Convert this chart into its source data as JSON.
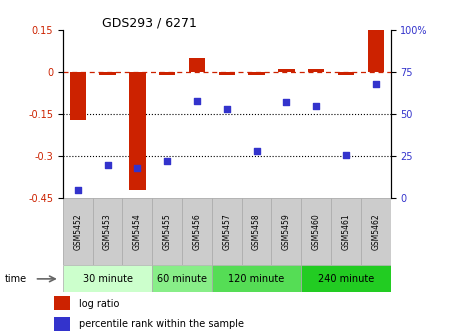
{
  "title": "GDS293 / 6271",
  "samples": [
    "GSM5452",
    "GSM5453",
    "GSM5454",
    "GSM5455",
    "GSM5456",
    "GSM5457",
    "GSM5458",
    "GSM5459",
    "GSM5460",
    "GSM5461",
    "GSM5462"
  ],
  "log_ratio": [
    -0.17,
    -0.01,
    -0.42,
    -0.01,
    0.05,
    -0.01,
    -0.01,
    0.01,
    0.01,
    -0.01,
    0.15
  ],
  "percentile_rank": [
    5,
    20,
    18,
    22,
    58,
    53,
    28,
    57,
    55,
    26,
    68
  ],
  "ylim_left": [
    -0.45,
    0.15
  ],
  "ylim_right": [
    0,
    100
  ],
  "yticks_left": [
    0.15,
    0.0,
    -0.15,
    -0.3,
    -0.45
  ],
  "yticks_left_labels": [
    "0.15",
    "0",
    "-0.15",
    "-0.3",
    "-0.45"
  ],
  "yticks_right": [
    100,
    75,
    50,
    25,
    0
  ],
  "yticks_right_labels": [
    "100%",
    "75",
    "50",
    "25",
    "0"
  ],
  "hline_y": [
    -0.15,
    -0.3
  ],
  "dashed_hline_y": 0.0,
  "bar_color": "#cc2200",
  "scatter_color": "#3333cc",
  "bar_width": 0.55,
  "time_groups": [
    {
      "label": "30 minute",
      "color": "#ccffcc",
      "start": 0,
      "end": 3
    },
    {
      "label": "60 minute",
      "color": "#88ee88",
      "start": 3,
      "end": 5
    },
    {
      "label": "120 minute",
      "color": "#55dd55",
      "start": 5,
      "end": 8
    },
    {
      "label": "240 minute",
      "color": "#22cc22",
      "start": 8,
      "end": 11
    }
  ],
  "legend_log_ratio": "log ratio",
  "legend_percentile": "percentile rank within the sample",
  "time_label": "time",
  "bg_color": "#ffffff",
  "tick_label_color_left": "#cc2200",
  "tick_label_color_right": "#3333cc",
  "sample_bg": "#cccccc",
  "sample_edge": "#aaaaaa"
}
